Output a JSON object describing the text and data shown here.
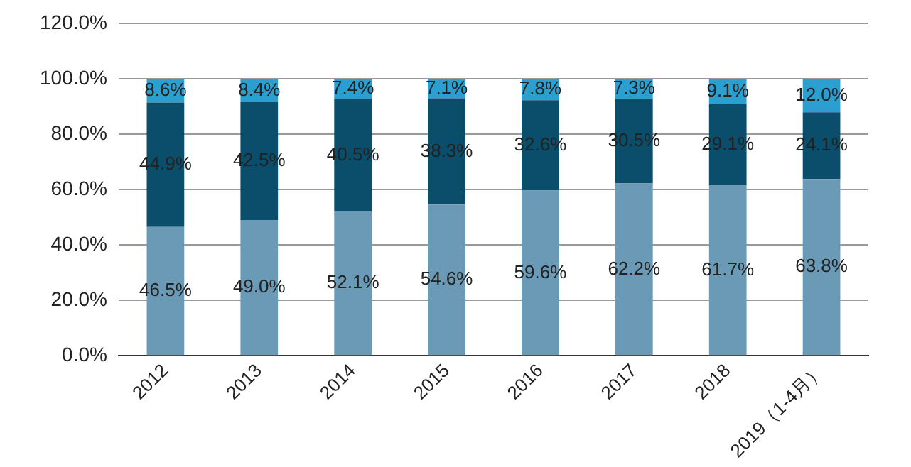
{
  "chart_data": {
    "type": "bar",
    "stacked": true,
    "categories": [
      "2012",
      "2013",
      "2014",
      "2015",
      "2016",
      "2017",
      "2018",
      "2019（1-4月）"
    ],
    "series": [
      {
        "color": "#6a9ab5",
        "values": [
          46.5,
          49.0,
          52.1,
          54.6,
          59.6,
          62.2,
          61.7,
          63.8
        ],
        "value_labels": [
          "46.5%",
          "49.0%",
          "52.1%",
          "54.6%",
          "59.6%",
          "62.2%",
          "61.7%",
          "63.8%"
        ]
      },
      {
        "color": "#0b4e6b",
        "values": [
          44.9,
          42.5,
          40.5,
          38.3,
          32.6,
          30.5,
          29.1,
          24.1
        ],
        "value_labels": [
          "44.9%",
          "42.5%",
          "40.5%",
          "38.3%",
          "32.6%",
          "30.5%",
          "29.1%",
          "24.1%"
        ]
      },
      {
        "color": "#2a9fd0",
        "values": [
          8.6,
          8.4,
          7.4,
          7.1,
          7.8,
          7.3,
          9.1,
          12.0
        ],
        "value_labels": [
          "8.6%",
          "8.4%",
          "7.4%",
          "7.1%",
          "7.8%",
          "7.3%",
          "9.1%",
          "12.0%"
        ]
      }
    ],
    "ylim": [
      0,
      120
    ],
    "yticks": [
      {
        "value": 0,
        "label": "0.0%"
      },
      {
        "value": 20,
        "label": "20.0%"
      },
      {
        "value": 40,
        "label": "40.0%"
      },
      {
        "value": 60,
        "label": "60.0%"
      },
      {
        "value": 80,
        "label": "80.0%"
      },
      {
        "value": 100,
        "label": "100.0%"
      },
      {
        "value": 120,
        "label": "120.0%"
      }
    ],
    "grid": "y",
    "legend": false
  }
}
